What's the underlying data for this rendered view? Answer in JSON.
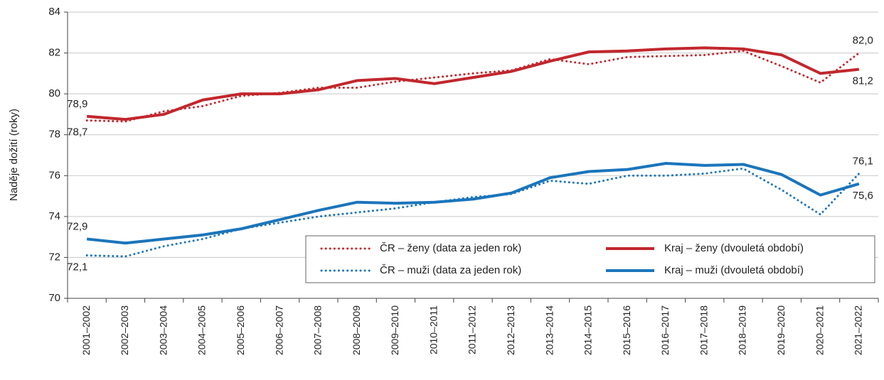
{
  "chart_data": {
    "type": "line",
    "y_label": "Naděje dožití (roky)",
    "categories": [
      "2001–2002",
      "2002–2003",
      "2003–2004",
      "2004–2005",
      "2005–2006",
      "2006–2007",
      "2007–2008",
      "2008–2009",
      "2009–2010",
      "2010–2011",
      "2011–2012",
      "2012–2013",
      "2013–2014",
      "2014–2015",
      "2015–2016",
      "2016–2017",
      "2017–2018",
      "2018–2019",
      "2019–2020",
      "2020–2021",
      "2021–2022"
    ],
    "ylim": [
      70,
      84
    ],
    "yticks": [
      70,
      72,
      74,
      76,
      78,
      80,
      82,
      84
    ],
    "grid": true,
    "legend": "bottom-right",
    "series": [
      {
        "name": "ČR – ženy (data za jeden rok)",
        "color": "#c1272d",
        "style": "dotted",
        "values": [
          78.7,
          78.65,
          79.15,
          79.4,
          79.9,
          80.05,
          80.3,
          80.3,
          80.6,
          80.8,
          81.0,
          81.15,
          81.7,
          81.45,
          81.8,
          81.85,
          81.9,
          82.1,
          81.35,
          80.55,
          82.0
        ],
        "value_labels": [
          "78,7",
          null,
          null,
          null,
          null,
          null,
          null,
          null,
          null,
          null,
          null,
          null,
          null,
          null,
          null,
          null,
          null,
          null,
          null,
          null,
          "82,0"
        ]
      },
      {
        "name": "Kraj – ženy (dvouletá období)",
        "color": "#c1272d",
        "style": "solid",
        "values": [
          78.9,
          78.75,
          79.0,
          79.7,
          80.0,
          80.0,
          80.2,
          80.65,
          80.75,
          80.5,
          80.8,
          81.1,
          81.6,
          82.05,
          82.1,
          82.2,
          82.25,
          82.2,
          81.9,
          81.0,
          81.2
        ],
        "value_labels": [
          "78,9",
          null,
          null,
          null,
          null,
          null,
          null,
          null,
          null,
          null,
          null,
          null,
          null,
          null,
          null,
          null,
          null,
          null,
          null,
          null,
          "81,2"
        ]
      },
      {
        "name": "ČR – muži (data za jeden rok)",
        "color": "#1b75bb",
        "style": "dotted",
        "values": [
          72.1,
          72.05,
          72.55,
          72.9,
          73.4,
          73.7,
          74.0,
          74.2,
          74.4,
          74.7,
          74.95,
          75.1,
          75.75,
          75.6,
          76.0,
          76.0,
          76.1,
          76.35,
          75.3,
          74.1,
          76.1
        ],
        "value_labels": [
          "72,1",
          null,
          null,
          null,
          null,
          null,
          null,
          null,
          null,
          null,
          null,
          null,
          null,
          null,
          null,
          null,
          null,
          null,
          null,
          null,
          "76,1"
        ]
      },
      {
        "name": "Kraj – muži (dvouletá období)",
        "color": "#1b75bb",
        "style": "solid",
        "values": [
          72.9,
          72.7,
          72.9,
          73.1,
          73.4,
          73.85,
          74.3,
          74.7,
          74.65,
          74.7,
          74.85,
          75.15,
          75.9,
          76.2,
          76.3,
          76.6,
          76.5,
          76.55,
          76.05,
          75.05,
          75.6
        ],
        "value_labels": [
          "72,9",
          null,
          null,
          null,
          null,
          null,
          null,
          null,
          null,
          null,
          null,
          null,
          null,
          null,
          null,
          null,
          null,
          null,
          null,
          null,
          "75,6"
        ]
      }
    ]
  }
}
